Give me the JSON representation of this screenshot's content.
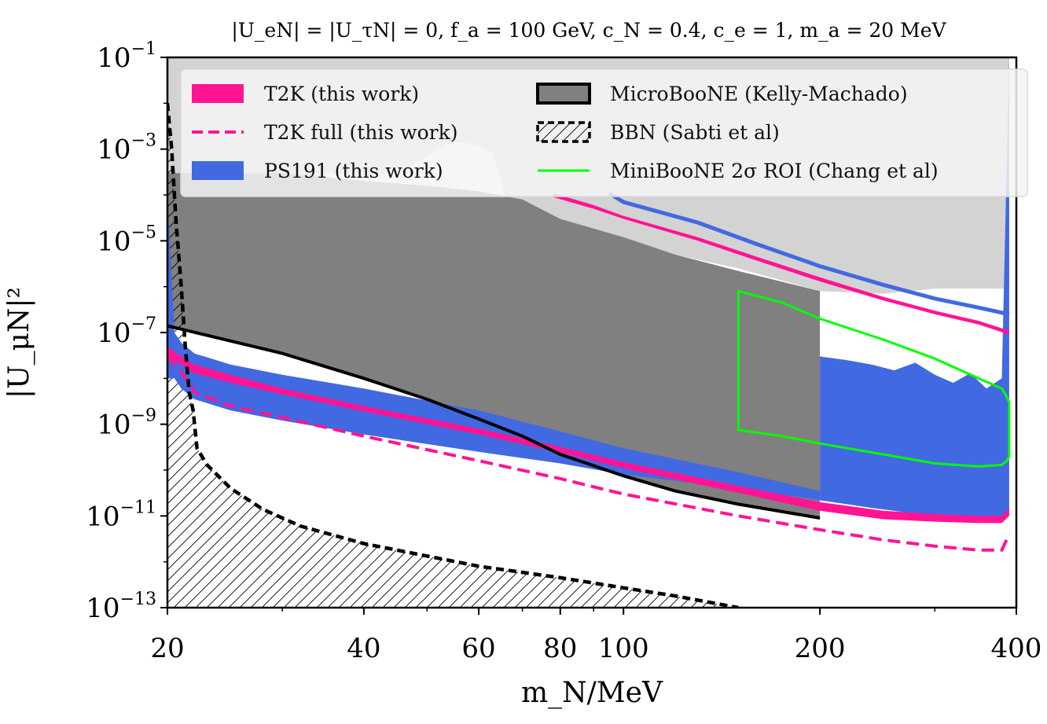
{
  "chart_data": {
    "type": "area",
    "title": "|U_eN| = |U_τN| = 0, f_a = 100 GeV, c_N = 0.4, c_e = 1, m_a = 20 MeV",
    "xlabel": "m_N/MeV",
    "ylabel": "|U_μN|²",
    "xscale": "log",
    "yscale": "log",
    "xlim": [
      20,
      400
    ],
    "ylim": [
      1e-13,
      0.1
    ],
    "x_ticks": [
      {
        "label": "20",
        "value": 20
      },
      {
        "label": "40",
        "value": 40
      },
      {
        "label": "60",
        "value": 60
      },
      {
        "label": "80",
        "value": 80
      },
      {
        "label": "100",
        "value": 100
      },
      {
        "label": "200",
        "value": 200
      },
      {
        "label": "400",
        "value": 400
      }
    ],
    "y_ticks": [
      {
        "base": "10",
        "exp": "−1",
        "value": 0.1
      },
      {
        "base": "10",
        "exp": "−3",
        "value": 0.001
      },
      {
        "base": "10",
        "exp": "−5",
        "value": 1e-05
      },
      {
        "base": "10",
        "exp": "−7",
        "value": 1e-07
      },
      {
        "base": "10",
        "exp": "−9",
        "value": 1e-09
      },
      {
        "base": "10",
        "exp": "−11",
        "value": 1e-11
      },
      {
        "base": "10",
        "exp": "−13",
        "value": 1e-13
      }
    ],
    "legend": {
      "placement": "top",
      "entries": [
        {
          "key": "t2k",
          "label": "T2K (this work)",
          "style": "fill",
          "color": "#ff1493"
        },
        {
          "key": "t2k_full",
          "label": "T2K full (this work)",
          "style": "dashed",
          "color": "#ff1493"
        },
        {
          "key": "ps191",
          "label": "PS191 (this work)",
          "style": "fill",
          "color": "#4169e1"
        },
        {
          "key": "microboone",
          "label": "MicroBooNE (Kelly-Machado)",
          "style": "fill-outlined",
          "color": "#808080"
        },
        {
          "key": "bbn",
          "label": "BBN (Sabti et al)",
          "style": "hatched",
          "color": "#000000"
        },
        {
          "key": "miniboone",
          "label": "MiniBooNE 2σ ROI (Chang et al)",
          "style": "line",
          "color": "#00ff00"
        }
      ]
    },
    "colors": {
      "existing_bounds": "#d3d3d3",
      "microboone": "#808080",
      "t2k": "#ff1493",
      "ps191": "#4169e1",
      "miniboone": "#00ff00",
      "bbn": "#000000"
    },
    "existing_bounds_region": {
      "x": [
        20,
        21.5,
        22.5,
        24,
        25,
        26.5,
        27.5,
        28.5,
        30,
        31,
        32.5,
        34,
        35,
        45,
        55,
        60,
        63,
        65,
        66,
        70,
        80,
        89,
        120,
        150,
        200,
        250,
        300,
        390
      ],
      "upper": [
        0.1,
        0.1,
        0.1,
        0.1,
        0.1,
        0.1,
        0.1,
        0.1,
        0.1,
        0.1,
        0.1,
        0.1,
        0.1,
        0.1,
        0.1,
        0.1,
        0.1,
        0.1,
        0.1,
        0.1,
        0.1,
        0.1,
        0.1,
        0.1,
        0.1,
        0.1,
        0.1,
        0.1
      ],
      "lower": [
        8e-06,
        3e-06,
        2.2e-06,
        1.5e-06,
        1.5e-06,
        2.5e-06,
        1.5e-06,
        2.2e-06,
        4.5e-06,
        9e-06,
        9e-06,
        9e-06,
        0.0003,
        0.0003,
        0.0015,
        0.0012,
        0.0008,
        0.0002,
        8e-05,
        4e-05,
        2e-05,
        1.5e-05,
        5e-06,
        2.5e-06,
        8e-07,
        7e-07,
        9e-07,
        9e-07
      ]
    },
    "microboone_region": {
      "x": [
        20,
        30,
        40,
        50,
        60,
        70,
        80,
        100,
        120,
        150,
        200
      ],
      "upper": [
        0.0003,
        0.0003,
        0.0002,
        0.00016,
        0.00012,
        8e-05,
        3e-05,
        1.2e-05,
        5e-06,
        2.2e-06,
        8e-07
      ],
      "lower": [
        1.4e-07,
        3.5e-08,
        1e-08,
        3.5e-09,
        1.3e-09,
        5.5e-10,
        2.2e-10,
        7.5e-11,
        3.5e-11,
        1.8e-11,
        9e-12
      ]
    },
    "ps191_region_low": {
      "x": [
        20,
        20.5,
        21,
        22,
        25,
        30,
        40,
        60,
        80,
        100,
        150,
        200
      ],
      "upper": [
        0.0001,
        1e-07,
        6e-08,
        3.5e-08,
        2e-08,
        1.2e-08,
        6e-09,
        2e-09,
        7e-10,
        3e-10,
        9e-11,
        3.5e-11
      ],
      "lower": [
        1e-08,
        1e-08,
        6e-09,
        3.5e-09,
        2e-09,
        1.2e-09,
        6e-10,
        2.5e-10,
        1.4e-10,
        8e-11,
        4e-11,
        2.2e-11
      ]
    },
    "ps191_region_high": {
      "x": [
        200,
        220,
        240,
        260,
        280,
        300,
        320,
        340,
        360,
        380,
        390
      ],
      "upper": [
        3e-08,
        2.5e-08,
        2e-08,
        1.5e-08,
        2.2e-08,
        1.2e-08,
        8e-09,
        1.3e-08,
        6e-09,
        1e-08,
        0.1
      ],
      "lower": [
        2.2e-11,
        1.8e-11,
        1.5e-11,
        1.3e-11,
        1.1e-11,
        1e-11,
        9e-12,
        8.5e-12,
        8e-12,
        8.5e-12,
        1.2e-11
      ]
    },
    "t2k_band": {
      "x": [
        20,
        21,
        22,
        25,
        30,
        40,
        60,
        80,
        100,
        150,
        200,
        250,
        300,
        350,
        380,
        390
      ],
      "upper": [
        5e-08,
        3e-08,
        2e-08,
        1.2e-08,
        6e-09,
        2.5e-09,
        8e-10,
        3.2e-10,
        1.5e-10,
        4.5e-11,
        2e-11,
        1.3e-11,
        1.1e-11,
        1e-11,
        1e-11,
        1.5e-11
      ],
      "lower": [
        3e-08,
        2e-08,
        1.3e-08,
        8e-09,
        4.5e-09,
        1.9e-09,
        6e-10,
        2.4e-10,
        1.1e-10,
        3.2e-11,
        1.3e-11,
        8.5e-12,
        7.5e-12,
        7e-12,
        7e-12,
        1e-11
      ]
    },
    "t2k_high_band": {
      "x": [
        78,
        90,
        100,
        130,
        160,
        200,
        250,
        300,
        350,
        390
      ],
      "upper": [
        0.00011,
        6e-05,
        3.5e-05,
        1.2e-05,
        4.5e-06,
        1.6e-06,
        6e-07,
        3e-07,
        1.8e-07,
        1.1e-07
      ],
      "lower": [
        9e-05,
        5e-05,
        3e-05,
        1e-05,
        3.7e-06,
        1.3e-06,
        5e-07,
        2.5e-07,
        1.5e-07,
        9e-08
      ]
    },
    "t2k_full": {
      "x": [
        20,
        21,
        22,
        25,
        30,
        40,
        60,
        80,
        100,
        150,
        200,
        250,
        300,
        350,
        380,
        390
      ],
      "y": [
        3e-08,
        1.4e-08,
        5e-09,
        2.5e-09,
        1.4e-09,
        5.5e-10,
        1.6e-10,
        6.5e-11,
        3e-11,
        1e-11,
        5e-12,
        3e-12,
        2.2e-12,
        1.8e-12,
        1.8e-12,
        4e-12
      ]
    },
    "ps191_high_line": {
      "x": [
        95,
        100,
        130,
        160,
        200,
        250,
        300,
        350,
        390
      ],
      "y": [
        0.00011,
        7e-05,
        2.5e-05,
        8.5e-06,
        2.8e-06,
        1.1e-06,
        5.5e-07,
        3.5e-07,
        2.5e-07
      ]
    },
    "microboone_boundary": {
      "x": [
        20,
        30,
        40,
        50,
        60,
        70,
        80,
        100,
        120,
        150,
        200
      ],
      "y": [
        1.4e-07,
        3.5e-08,
        1e-08,
        3.5e-09,
        1.3e-09,
        5.5e-10,
        2.2e-10,
        7.5e-11,
        3.5e-11,
        1.8e-11,
        9e-12
      ]
    },
    "bbn": {
      "x": [
        20,
        20.3,
        20.6,
        21,
        21.3,
        21.6,
        21.9,
        22.2,
        23,
        25,
        28,
        32,
        40,
        60,
        80,
        100,
        120,
        140,
        150
      ],
      "y": [
        0.01,
        0.001,
        3e-05,
        1e-06,
        5e-08,
        5e-09,
        2e-09,
        3e-10,
        1.3e-10,
        4e-11,
        1.4e-11,
        6e-12,
        2.5e-12,
        8e-13,
        4.5e-13,
        2.7e-13,
        1.8e-13,
        1.2e-13,
        1e-13
      ]
    },
    "miniboone_roi": {
      "x": [
        150,
        175,
        200,
        250,
        300,
        350,
        380,
        385,
        390,
        390,
        387,
        380,
        350,
        300,
        250,
        200,
        175,
        150
      ],
      "y": [
        8e-07,
        4.5e-07,
        2e-07,
        7e-08,
        2.7e-08,
        1e-08,
        6e-09,
        4.5e-09,
        3e-09,
        2e-10,
        1.6e-10,
        1.3e-10,
        1.2e-10,
        1.4e-10,
        2.2e-10,
        3.8e-10,
        5.5e-10,
        7.5e-10
      ]
    }
  }
}
